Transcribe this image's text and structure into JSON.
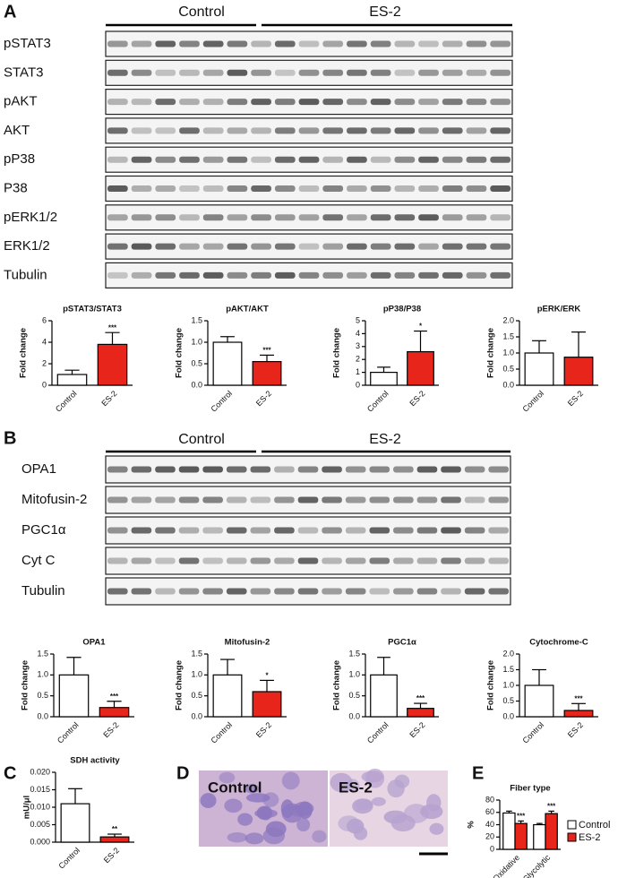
{
  "panels": {
    "A": {
      "letter": "A",
      "groups": [
        "Control",
        "ES-2"
      ],
      "blots": [
        "pSTAT3",
        "STAT3",
        "pAKT",
        "AKT",
        "pP38",
        "P38",
        "pERK1/2",
        "ERK1/2",
        "Tubulin"
      ]
    },
    "B": {
      "letter": "B",
      "groups": [
        "Control",
        "ES-2"
      ],
      "blots": [
        "OPA1",
        "Mitofusin-2",
        "PGC1α",
        "Cyt C",
        "Tubulin"
      ]
    },
    "C": {
      "letter": "C"
    },
    "D": {
      "letter": "D",
      "labels": [
        "Control",
        "ES-2"
      ]
    },
    "E": {
      "letter": "E"
    }
  },
  "chart_data": [
    {
      "type": "bar",
      "title": "pSTAT3/STAT3",
      "ylabel": "Fold change",
      "categories": [
        "Control",
        "ES-2"
      ],
      "values": [
        1.0,
        3.8
      ],
      "errors": [
        0.4,
        1.1
      ],
      "significance": "***",
      "colors": [
        "#ffffff",
        "#e8251b"
      ],
      "ylim": [
        0,
        6
      ],
      "yticks": [
        0,
        2,
        4,
        6
      ]
    },
    {
      "type": "bar",
      "title": "pAKT/AKT",
      "ylabel": "Fold change",
      "categories": [
        "Control",
        "ES-2"
      ],
      "values": [
        1.0,
        0.55
      ],
      "errors": [
        0.13,
        0.15
      ],
      "significance": "***",
      "colors": [
        "#ffffff",
        "#e8251b"
      ],
      "ylim": [
        0,
        1.5
      ],
      "yticks": [
        {
          "value": 0,
          "label": "0.0"
        },
        0.5,
        {
          "value": 1,
          "label": "1.0"
        },
        1.5
      ]
    },
    {
      "type": "bar",
      "title": "pP38/P38",
      "ylabel": "Fold change",
      "categories": [
        "Control",
        "ES-2"
      ],
      "values": [
        1.0,
        2.6
      ],
      "errors": [
        0.4,
        1.6
      ],
      "significance": "*",
      "colors": [
        "#ffffff",
        "#e8251b"
      ],
      "ylim": [
        0,
        5
      ],
      "yticks": [
        0,
        1,
        2,
        3,
        4,
        5
      ]
    },
    {
      "type": "bar",
      "title": "pERK/ERK",
      "ylabel": "Fold change",
      "categories": [
        "Control",
        "ES-2"
      ],
      "values": [
        1.0,
        0.87
      ],
      "errors": [
        0.38,
        0.78
      ],
      "colors": [
        "#ffffff",
        "#e8251b"
      ],
      "ylim": [
        0,
        2
      ],
      "yticks": [
        {
          "value": 0,
          "label": "0.0"
        },
        0.5,
        {
          "value": 1,
          "label": "1.0"
        },
        1.5,
        {
          "value": 2,
          "label": "2.0"
        }
      ]
    },
    {
      "type": "bar",
      "title": "OPA1",
      "ylabel": "Fold change",
      "categories": [
        "Control",
        "ES-2"
      ],
      "values": [
        1.0,
        0.22
      ],
      "errors": [
        0.42,
        0.15
      ],
      "significance": "***",
      "colors": [
        "#ffffff",
        "#e8251b"
      ],
      "ylim": [
        0,
        1.5
      ],
      "yticks": [
        {
          "value": 0,
          "label": "0.0"
        },
        0.5,
        {
          "value": 1,
          "label": "1.0"
        },
        1.5
      ]
    },
    {
      "type": "bar",
      "title": "Mitofusin-2",
      "ylabel": "Fold change",
      "categories": [
        "Control",
        "ES-2"
      ],
      "values": [
        1.0,
        0.6
      ],
      "errors": [
        0.37,
        0.27
      ],
      "significance": "*",
      "colors": [
        "#ffffff",
        "#e8251b"
      ],
      "ylim": [
        0,
        1.5
      ],
      "yticks": [
        {
          "value": 0,
          "label": "0.0"
        },
        0.5,
        {
          "value": 1,
          "label": "1.0"
        },
        1.5
      ]
    },
    {
      "type": "bar",
      "title": "PGC1α",
      "ylabel": "Fold change",
      "categories": [
        "Control",
        "ES-2"
      ],
      "values": [
        1.0,
        0.2
      ],
      "errors": [
        0.42,
        0.12
      ],
      "significance": "***",
      "colors": [
        "#ffffff",
        "#e8251b"
      ],
      "ylim": [
        0,
        1.5
      ],
      "yticks": [
        {
          "value": 0,
          "label": "0.0"
        },
        0.5,
        {
          "value": 1,
          "label": "1.0"
        },
        1.5
      ]
    },
    {
      "type": "bar",
      "title": "Cytochrome-C",
      "ylabel": "Fold change",
      "categories": [
        "Control",
        "ES-2"
      ],
      "values": [
        1.0,
        0.2
      ],
      "errors": [
        0.5,
        0.22
      ],
      "significance": "***",
      "colors": [
        "#ffffff",
        "#e8251b"
      ],
      "ylim": [
        0,
        2
      ],
      "yticks": [
        {
          "value": 0,
          "label": "0.0"
        },
        0.5,
        {
          "value": 1,
          "label": "1.0"
        },
        1.5,
        {
          "value": 2,
          "label": "2.0"
        }
      ]
    },
    {
      "type": "bar",
      "title": "SDH activity",
      "ylabel": "mU/μl",
      "categories": [
        "Control",
        "ES-2"
      ],
      "values": [
        0.011,
        0.0015
      ],
      "errors": [
        0.0043,
        0.0008
      ],
      "significance": "**",
      "colors": [
        "#ffffff",
        "#e8251b"
      ],
      "ylim": [
        0,
        0.02
      ],
      "yticks": [
        {
          "value": 0,
          "label": "0.000"
        },
        0.005,
        {
          "value": 0.01,
          "label": "0.010"
        },
        0.015,
        {
          "value": 0.02,
          "label": "0.020"
        }
      ]
    },
    {
      "type": "grouped_bar",
      "title": "Fiber type",
      "ylabel": "%",
      "categories": [
        "Oxidative",
        "Glycolytic"
      ],
      "series": [
        {
          "name": "Control",
          "color": "#ffffff",
          "values": [
            59,
            40
          ],
          "errors": [
            3,
            2
          ]
        },
        {
          "name": "ES-2",
          "color": "#e8251b",
          "values": [
            42,
            58
          ],
          "errors": [
            4,
            4
          ],
          "significance": [
            "***",
            "***"
          ]
        }
      ],
      "ylim": [
        0,
        80
      ],
      "yticks": [
        0,
        20,
        40,
        60,
        80
      ]
    }
  ]
}
